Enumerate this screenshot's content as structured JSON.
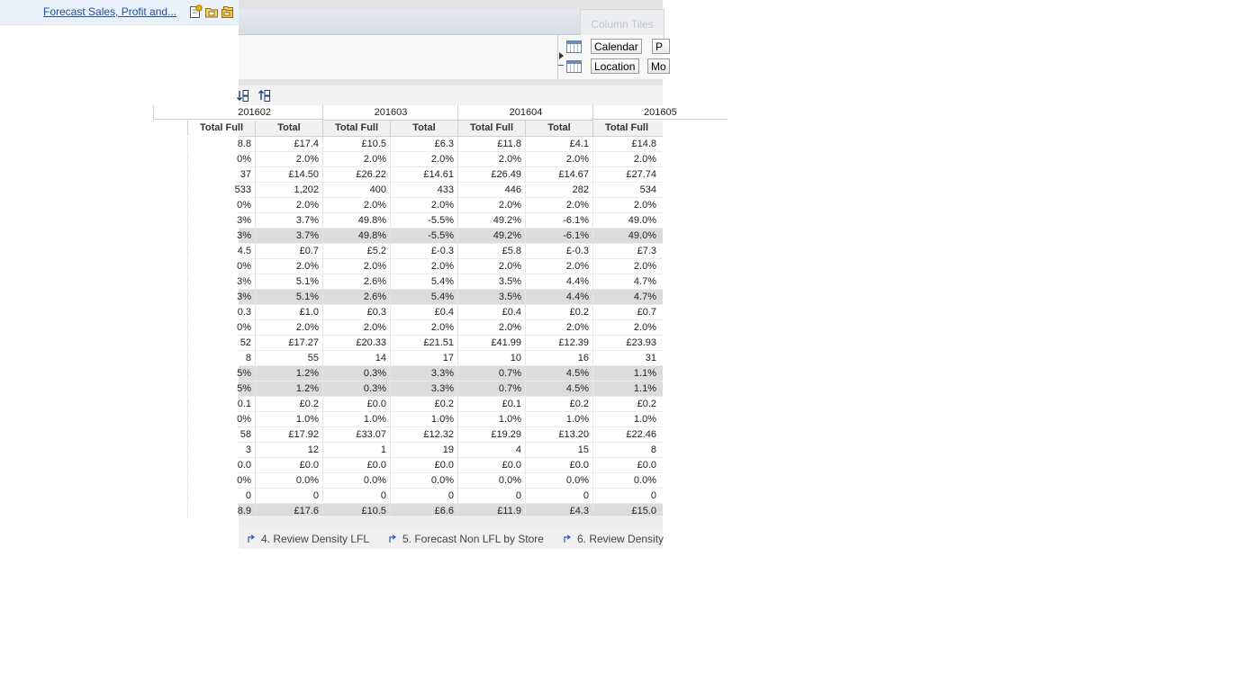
{
  "nav": {
    "link_text": "Forecast Sales, Profit and...",
    "icons": [
      "new-task-icon",
      "open-folder-icon",
      "open-folders-icon"
    ]
  },
  "toolbar": {
    "column_tiles_label": "Column Tiles"
  },
  "pov": {
    "tiles": [
      {
        "label": "Calendar",
        "icon": "member-grid-icon"
      },
      {
        "label": "Location",
        "icon": "member-grid-icon"
      },
      {
        "label": "P",
        "icon": ""
      },
      {
        "label": "Mo",
        "icon": ""
      }
    ]
  },
  "grid_toolbar": {
    "icons": [
      "sort-ascending-icon",
      "sort-descending-icon"
    ]
  },
  "grid": {
    "periods": [
      "201602",
      "201603",
      "201604",
      "201605"
    ],
    "headers": [
      "Total Full",
      "Total",
      "Total Full",
      "Total",
      "Total Full",
      "Total",
      "Total Full"
    ],
    "rows": [
      {
        "shaded": false,
        "cells": [
          "8.8",
          "£17.4",
          "£10.5",
          "£6.3",
          "£11.8",
          "£4.1",
          "£14.8"
        ]
      },
      {
        "shaded": false,
        "cells": [
          "0%",
          "2.0%",
          "2.0%",
          "2.0%",
          "2.0%",
          "2.0%",
          "2.0%"
        ]
      },
      {
        "shaded": false,
        "cells": [
          "37",
          "£14.50",
          "£26.22",
          "£14.61",
          "£26.49",
          "£14.67",
          "£27.74"
        ]
      },
      {
        "shaded": false,
        "cells": [
          "533",
          "1,202",
          "400",
          "433",
          "446",
          "282",
          "534"
        ]
      },
      {
        "shaded": false,
        "cells": [
          "0%",
          "2.0%",
          "2.0%",
          "2.0%",
          "2.0%",
          "2.0%",
          "2.0%"
        ]
      },
      {
        "shaded": false,
        "cells": [
          "3%",
          "3.7%",
          "49.8%",
          "-5.5%",
          "49.2%",
          "-6.1%",
          "49.0%"
        ]
      },
      {
        "shaded": true,
        "cells": [
          "3%",
          "3.7%",
          "49.8%",
          "-5.5%",
          "49.2%",
          "-6.1%",
          "49.0%"
        ]
      },
      {
        "shaded": false,
        "cells": [
          "4.5",
          "£0.7",
          "£5.2",
          "£-0.3",
          "£5.8",
          "£-0.3",
          "£7.3"
        ]
      },
      {
        "shaded": false,
        "cells": [
          "0%",
          "2.0%",
          "2.0%",
          "2.0%",
          "2.0%",
          "2.0%",
          "2.0%"
        ]
      },
      {
        "shaded": false,
        "cells": [
          "3%",
          "5.1%",
          "2.6%",
          "5.4%",
          "3.5%",
          "4.4%",
          "4.7%"
        ]
      },
      {
        "shaded": true,
        "cells": [
          "3%",
          "5.1%",
          "2.6%",
          "5.4%",
          "3.5%",
          "4.4%",
          "4.7%"
        ]
      },
      {
        "shaded": false,
        "cells": [
          "0.3",
          "£1.0",
          "£0.3",
          "£0.4",
          "£0.4",
          "£0.2",
          "£0.7"
        ]
      },
      {
        "shaded": false,
        "cells": [
          "0%",
          "2.0%",
          "2.0%",
          "2.0%",
          "2.0%",
          "2.0%",
          "2.0%"
        ]
      },
      {
        "shaded": false,
        "cells": [
          "52",
          "£17.27",
          "£20.33",
          "£21.51",
          "£41.99",
          "£12.39",
          "£23.93"
        ]
      },
      {
        "shaded": false,
        "cells": [
          "8",
          "55",
          "14",
          "17",
          "10",
          "16",
          "31"
        ]
      },
      {
        "shaded": true,
        "cells": [
          "5%",
          "1.2%",
          "0.3%",
          "3.3%",
          "0.7%",
          "4.5%",
          "1.1%"
        ]
      },
      {
        "shaded": true,
        "cells": [
          "5%",
          "1.2%",
          "0.3%",
          "3.3%",
          "0.7%",
          "4.5%",
          "1.1%"
        ]
      },
      {
        "shaded": false,
        "cells": [
          "0.1",
          "£0.2",
          "£0.0",
          "£0.2",
          "£0.1",
          "£0.2",
          "£0.2"
        ]
      },
      {
        "shaded": false,
        "cells": [
          "0%",
          "1.0%",
          "1.0%",
          "1.0%",
          "1.0%",
          "1.0%",
          "1.0%"
        ]
      },
      {
        "shaded": false,
        "cells": [
          "58",
          "£17.92",
          "£33.07",
          "£12.32",
          "£19.29",
          "£13.20",
          "£22.46"
        ]
      },
      {
        "shaded": false,
        "cells": [
          "3",
          "12",
          "1",
          "19",
          "4",
          "15",
          "8"
        ]
      },
      {
        "shaded": false,
        "cells": [
          "0.0",
          "£0.0",
          "£0.0",
          "£0.0",
          "£0.0",
          "£0.0",
          "£0.0"
        ]
      },
      {
        "shaded": false,
        "cells": [
          "0%",
          "0.0%",
          "0.0%",
          "0.0%",
          "0.0%",
          "0.0%",
          "0.0%"
        ]
      },
      {
        "shaded": false,
        "cells": [
          "0",
          "0",
          "0",
          "0",
          "0",
          "0",
          "0"
        ]
      },
      {
        "shaded": true,
        "cells": [
          "8.9",
          "£17.6",
          "£10.5",
          "£6.6",
          "£11.9",
          "£4.3",
          "£15.0"
        ]
      }
    ]
  },
  "tabs": [
    {
      "label": "4. Review Density LFL"
    },
    {
      "label": "5. Forecast Non LFL by Store"
    },
    {
      "label": "6. Review Density"
    }
  ],
  "colors": {
    "link": "#1f4e9b",
    "nav_bg": "#eaf1f8",
    "shaded_row": "#dcdcdc"
  }
}
